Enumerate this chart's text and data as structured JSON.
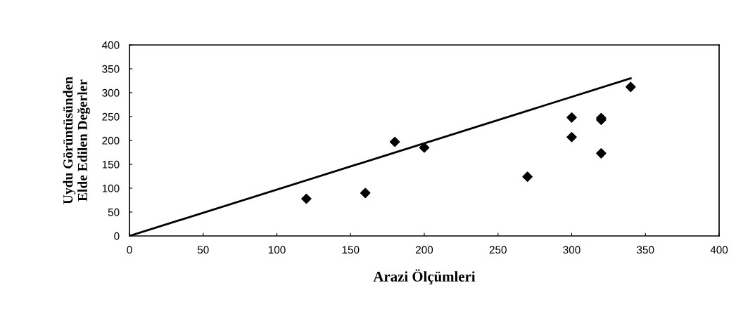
{
  "chart_data": {
    "type": "scatter",
    "xlabel": "Arazi Ölçümleri",
    "ylabel": "Uydu Görüntüsünden\nElde Edilen Değerler",
    "xlim": [
      0,
      400
    ],
    "xticks": [
      0,
      50,
      100,
      150,
      200,
      250,
      300,
      350,
      400
    ],
    "ylim": [
      0,
      400
    ],
    "yticks": [
      0,
      50,
      100,
      150,
      200,
      250,
      300,
      350,
      400
    ],
    "grid": false,
    "legend": false,
    "series": [
      {
        "color": "#000000",
        "marker": "diamond",
        "x": [
          120,
          160,
          180,
          200,
          270,
          300,
          300,
          320,
          320,
          320,
          340
        ],
        "values": [
          78,
          90,
          197,
          185,
          124,
          248,
          207,
          247,
          243,
          173,
          312
        ]
      },
      {
        "type": "line",
        "color": "#000000",
        "marker": "none",
        "line_style": "solid",
        "x": [
          0,
          340
        ],
        "values": [
          0,
          330
        ]
      }
    ]
  }
}
